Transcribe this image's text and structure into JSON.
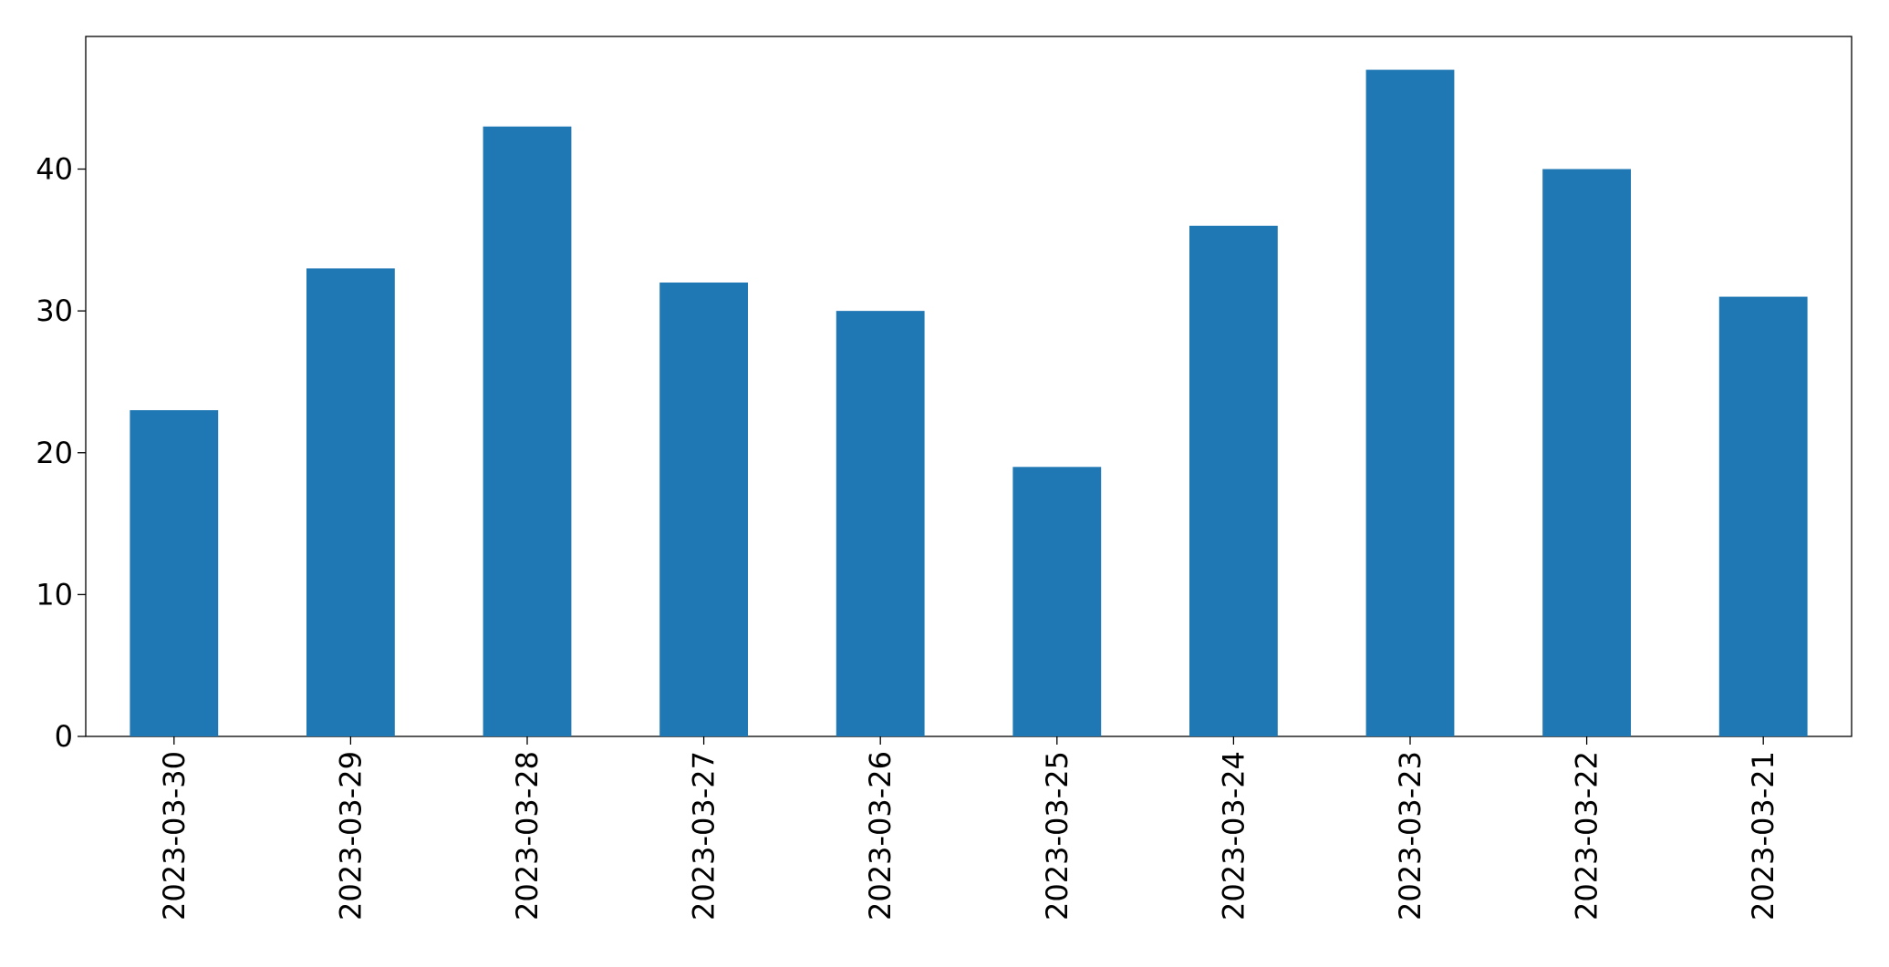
{
  "chart_data": {
    "type": "bar",
    "categories": [
      "2023-03-30",
      "2023-03-29",
      "2023-03-28",
      "2023-03-27",
      "2023-03-26",
      "2023-03-25",
      "2023-03-24",
      "2023-03-23",
      "2023-03-22",
      "2023-03-21"
    ],
    "values": [
      23,
      33,
      43,
      32,
      30,
      19,
      36,
      47,
      40,
      31
    ],
    "color": "#1f77b4",
    "ylim": [
      0,
      49.35
    ],
    "yticks": [
      0,
      10,
      20,
      30,
      40
    ],
    "grid": false
  }
}
